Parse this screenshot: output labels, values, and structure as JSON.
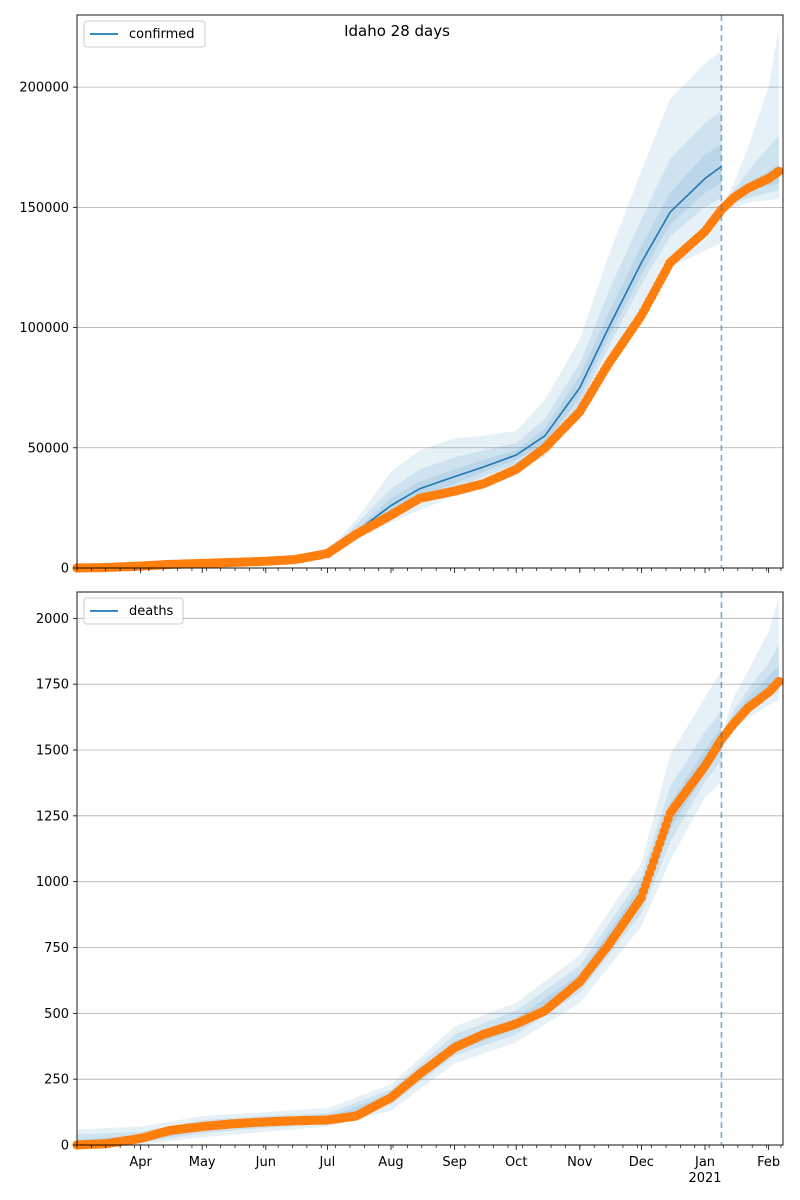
{
  "chart_data": [
    {
      "type": "line",
      "title": "Idaho 28 days",
      "legend": {
        "entry": "confirmed",
        "placement": "top-left"
      },
      "ylim": [
        0,
        230000
      ],
      "yticks": [
        0,
        50000,
        100000,
        150000,
        200000
      ],
      "ytick_labels": [
        "0",
        "50000",
        "100000",
        "150000",
        "200000"
      ],
      "grid": "y",
      "forecast_start": "2021-01-09",
      "series": [
        {
          "name": "confirmed",
          "color": "#1f77b4",
          "x": [
            "2020-03-01",
            "2020-04-01",
            "2020-05-01",
            "2020-06-01",
            "2020-06-15",
            "2020-07-01",
            "2020-07-15",
            "2020-08-01",
            "2020-08-15",
            "2020-09-01",
            "2020-09-15",
            "2020-10-01",
            "2020-10-15",
            "2020-11-01",
            "2020-11-15",
            "2020-12-01",
            "2020-12-15",
            "2021-01-01",
            "2021-01-09"
          ],
          "y": [
            0,
            800,
            1800,
            2800,
            3500,
            6000,
            15000,
            26000,
            33000,
            38000,
            42000,
            47000,
            55000,
            75000,
            100000,
            127000,
            148000,
            162000,
            167000
          ]
        }
      ],
      "observed": {
        "color": "#ff7f0e",
        "x": [
          "2020-03-01",
          "2020-03-15",
          "2020-04-01",
          "2020-04-15",
          "2020-05-01",
          "2020-05-15",
          "2020-06-01",
          "2020-06-15",
          "2020-07-01",
          "2020-07-15",
          "2020-08-01",
          "2020-08-15",
          "2020-09-01",
          "2020-09-15",
          "2020-10-01",
          "2020-10-15",
          "2020-11-01",
          "2020-11-15",
          "2020-12-01",
          "2020-12-15",
          "2021-01-01",
          "2021-01-09",
          "2021-01-15",
          "2021-01-22",
          "2021-02-01",
          "2021-02-06"
        ],
        "y": [
          0,
          200,
          800,
          1500,
          1900,
          2300,
          2800,
          3500,
          6000,
          14000,
          22000,
          29000,
          32000,
          35000,
          41000,
          50000,
          65000,
          85000,
          105000,
          127000,
          140000,
          149000,
          154000,
          158000,
          162000,
          165000
        ]
      },
      "bands": [
        {
          "level": "outer",
          "x": [
            "2020-07-01",
            "2020-07-15",
            "2020-08-01",
            "2020-08-15",
            "2020-09-01",
            "2020-09-15",
            "2020-10-01",
            "2020-10-15",
            "2020-11-01",
            "2020-11-15",
            "2020-12-01",
            "2020-12-15",
            "2021-01-01",
            "2021-01-09"
          ],
          "lower": [
            5000,
            12000,
            19000,
            24000,
            30000,
            35000,
            41000,
            46000,
            64000,
            85000,
            108000,
            125000,
            132000,
            135000
          ],
          "upper": [
            7000,
            20000,
            40000,
            49000,
            54000,
            55000,
            57000,
            70000,
            95000,
            130000,
            165000,
            195000,
            210000,
            215000
          ]
        },
        {
          "level": "middle",
          "x": [
            "2020-07-01",
            "2020-07-15",
            "2020-08-01",
            "2020-08-15",
            "2020-09-01",
            "2020-09-15",
            "2020-10-01",
            "2020-10-15",
            "2020-11-01",
            "2020-11-15",
            "2020-12-01",
            "2020-12-15",
            "2021-01-01",
            "2021-01-09"
          ],
          "lower": [
            5500,
            13000,
            21000,
            27000,
            33000,
            38000,
            43000,
            50000,
            68000,
            92000,
            118000,
            138000,
            150000,
            154000
          ],
          "upper": [
            6500,
            18000,
            33000,
            41000,
            46000,
            49000,
            52000,
            62000,
            85000,
            115000,
            145000,
            170000,
            185000,
            190000
          ]
        },
        {
          "level": "inner",
          "x": [
            "2020-07-01",
            "2020-07-15",
            "2020-08-01",
            "2020-08-15",
            "2020-09-01",
            "2020-09-15",
            "2020-10-01",
            "2020-10-15",
            "2020-11-01",
            "2020-11-15",
            "2020-12-01",
            "2020-12-15",
            "2021-01-01",
            "2021-01-09"
          ],
          "lower": [
            5800,
            14000,
            23000,
            30000,
            35000,
            40000,
            45000,
            52000,
            71000,
            96000,
            122000,
            143000,
            156000,
            160000
          ],
          "upper": [
            6200,
            16000,
            29000,
            36000,
            41000,
            45000,
            49000,
            58000,
            80000,
            106000,
            134000,
            156000,
            172000,
            176000
          ]
        },
        {
          "level": "outer",
          "x": [
            "2021-01-09",
            "2021-01-15",
            "2021-01-22",
            "2021-02-01",
            "2021-02-06"
          ],
          "lower": [
            148000,
            150000,
            152000,
            153000,
            153500
          ],
          "upper": [
            150000,
            160000,
            175000,
            200000,
            225000
          ]
        },
        {
          "level": "middle",
          "x": [
            "2021-01-09",
            "2021-01-15",
            "2021-01-22",
            "2021-02-01",
            "2021-02-06"
          ],
          "lower": [
            148500,
            151500,
            154000,
            156000,
            157000
          ],
          "upper": [
            149500,
            157000,
            165000,
            175000,
            180000
          ]
        },
        {
          "level": "inner",
          "x": [
            "2021-01-09",
            "2021-01-15",
            "2021-01-22",
            "2021-02-01",
            "2021-02-06"
          ],
          "lower": [
            149000,
            153000,
            156500,
            159000,
            160000
          ],
          "upper": [
            149200,
            155000,
            160000,
            165000,
            168000
          ]
        }
      ]
    },
    {
      "type": "line",
      "title": "",
      "legend": {
        "entry": "deaths",
        "placement": "top-left"
      },
      "ylim": [
        0,
        2100
      ],
      "yticks": [
        0,
        250,
        500,
        750,
        1000,
        1250,
        1500,
        1750,
        2000
      ],
      "ytick_labels": [
        "0",
        "250",
        "500",
        "750",
        "1000",
        "1250",
        "1500",
        "1750",
        "2000"
      ],
      "grid": "y",
      "forecast_start": "2021-01-09",
      "xtick_dates": [
        "2020-04-01",
        "2020-05-01",
        "2020-06-01",
        "2020-07-01",
        "2020-08-01",
        "2020-09-01",
        "2020-10-01",
        "2020-11-01",
        "2020-12-01",
        "2021-01-01",
        "2021-02-01"
      ],
      "xtick_labels": [
        "Apr",
        "May",
        "Jun",
        "Jul",
        "Aug",
        "Sep",
        "Oct",
        "Nov",
        "Dec",
        "Jan",
        "Feb"
      ],
      "xtick_year_label": "2021",
      "series": [
        {
          "name": "deaths",
          "color": "#1f77b4",
          "x": [
            "2020-03-01",
            "2020-03-15",
            "2020-04-01",
            "2020-04-15",
            "2020-05-01",
            "2020-05-15",
            "2020-06-01",
            "2020-06-15",
            "2020-07-01",
            "2020-07-15",
            "2020-08-01",
            "2020-08-15",
            "2020-09-01",
            "2020-09-15",
            "2020-10-01",
            "2020-10-15",
            "2020-11-01",
            "2020-11-15",
            "2020-12-01",
            "2020-12-15",
            "2021-01-01",
            "2021-01-09"
          ],
          "y": [
            0,
            5,
            25,
            55,
            70,
            80,
            88,
            92,
            95,
            110,
            180,
            280,
            370,
            420,
            460,
            510,
            620,
            760,
            950,
            1250,
            1450,
            1550
          ]
        }
      ],
      "observed": {
        "color": "#ff7f0e",
        "x": [
          "2020-03-01",
          "2020-03-15",
          "2020-04-01",
          "2020-04-15",
          "2020-05-01",
          "2020-05-15",
          "2020-06-01",
          "2020-06-15",
          "2020-07-01",
          "2020-07-15",
          "2020-08-01",
          "2020-08-15",
          "2020-09-01",
          "2020-09-15",
          "2020-10-01",
          "2020-10-15",
          "2020-11-01",
          "2020-11-15",
          "2020-12-01",
          "2020-12-15",
          "2021-01-01",
          "2021-01-09",
          "2021-01-15",
          "2021-01-22",
          "2021-02-01",
          "2021-02-06"
        ],
        "y": [
          0,
          5,
          25,
          55,
          70,
          80,
          88,
          92,
          95,
          110,
          180,
          270,
          370,
          420,
          460,
          510,
          620,
          760,
          940,
          1260,
          1440,
          1540,
          1600,
          1660,
          1720,
          1760
        ]
      },
      "bands": [
        {
          "level": "outer",
          "x": [
            "2020-03-01",
            "2020-04-01",
            "2020-05-01",
            "2020-06-01",
            "2020-07-01",
            "2020-08-01",
            "2020-09-01",
            "2020-10-01",
            "2020-11-01",
            "2020-12-01",
            "2020-12-15",
            "2021-01-01",
            "2021-01-09"
          ],
          "lower": [
            0,
            0,
            30,
            50,
            70,
            130,
            310,
            390,
            540,
            830,
            1080,
            1320,
            1380
          ],
          "upper": [
            60,
            70,
            110,
            125,
            140,
            230,
            450,
            540,
            720,
            1070,
            1480,
            1700,
            1800
          ]
        },
        {
          "level": "middle",
          "x": [
            "2020-03-01",
            "2020-04-01",
            "2020-05-01",
            "2020-06-01",
            "2020-07-01",
            "2020-08-01",
            "2020-09-01",
            "2020-10-01",
            "2020-11-01",
            "2020-12-01",
            "2020-12-15",
            "2021-01-01",
            "2021-01-09"
          ],
          "lower": [
            0,
            8,
            45,
            65,
            80,
            155,
            340,
            420,
            580,
            880,
            1150,
            1380,
            1460
          ],
          "upper": [
            40,
            50,
            95,
            110,
            120,
            210,
            420,
            510,
            680,
            1020,
            1360,
            1570,
            1650
          ]
        },
        {
          "level": "inner",
          "x": [
            "2020-03-01",
            "2020-04-01",
            "2020-05-01",
            "2020-06-01",
            "2020-07-01",
            "2020-08-01",
            "2020-09-01",
            "2020-10-01",
            "2020-11-01",
            "2020-12-01",
            "2020-12-15",
            "2021-01-01",
            "2021-01-09"
          ],
          "lower": [
            0,
            15,
            55,
            75,
            88,
            165,
            355,
            440,
            600,
            910,
            1200,
            1410,
            1500
          ],
          "upper": [
            20,
            35,
            85,
            100,
            105,
            195,
            395,
            480,
            650,
            990,
            1300,
            1500,
            1590
          ]
        },
        {
          "level": "outer",
          "x": [
            "2021-01-09",
            "2021-01-15",
            "2021-01-22",
            "2021-02-01",
            "2021-02-06"
          ],
          "lower": [
            1540,
            1580,
            1620,
            1670,
            1690
          ],
          "upper": [
            1560,
            1700,
            1800,
            1950,
            2080
          ]
        },
        {
          "level": "middle",
          "x": [
            "2021-01-09",
            "2021-01-15",
            "2021-01-22",
            "2021-02-01",
            "2021-02-06"
          ],
          "lower": [
            1545,
            1600,
            1650,
            1700,
            1720
          ],
          "upper": [
            1555,
            1650,
            1730,
            1830,
            1900
          ]
        },
        {
          "level": "inner",
          "x": [
            "2021-01-09",
            "2021-01-15",
            "2021-01-22",
            "2021-02-01",
            "2021-02-06"
          ],
          "lower": [
            1548,
            1610,
            1670,
            1720,
            1745
          ],
          "upper": [
            1552,
            1630,
            1700,
            1780,
            1820
          ]
        }
      ]
    }
  ],
  "colors": {
    "band": "#1f77b4",
    "forecast_line": "#1f77b4",
    "grid": "#b0b0b0"
  }
}
